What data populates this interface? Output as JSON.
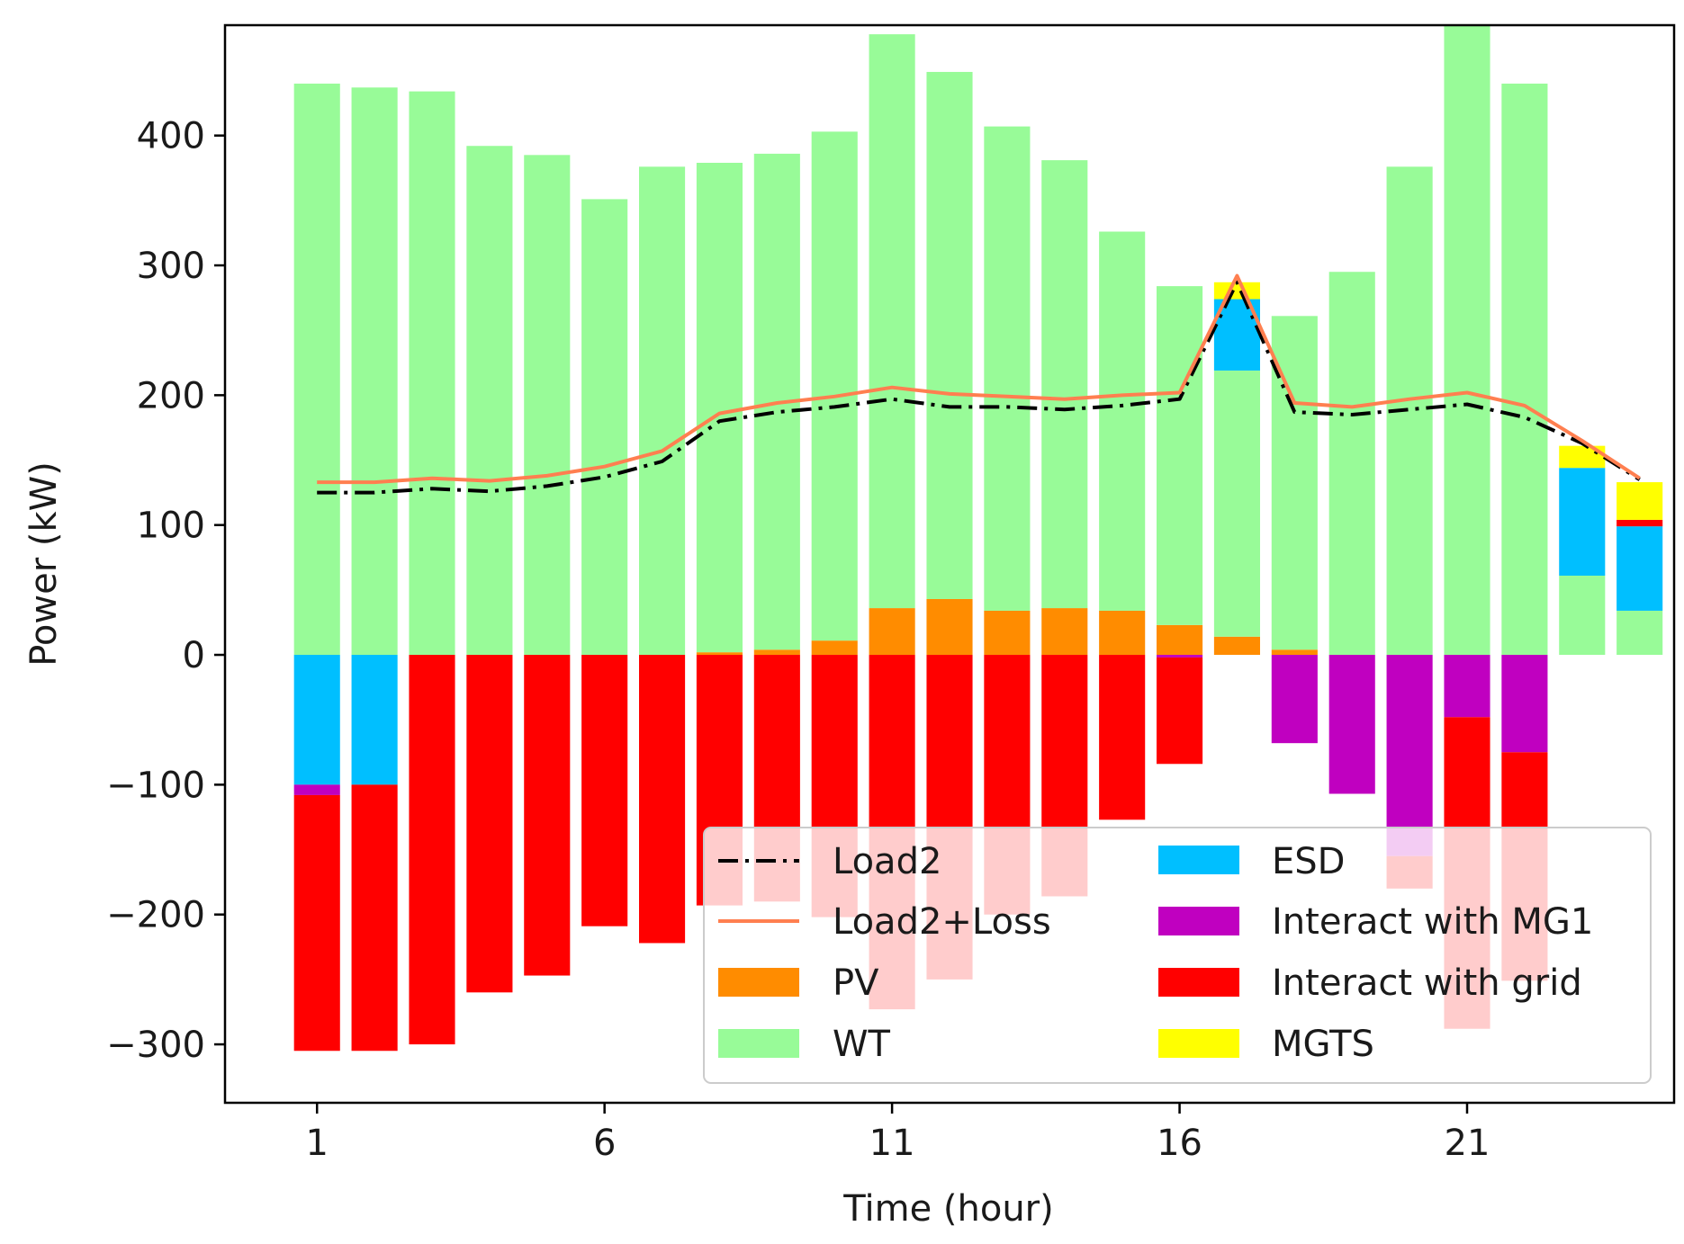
{
  "chart_data": {
    "type": "bar",
    "title": "",
    "xlabel": "Time (hour)",
    "ylabel": "Power (kW)",
    "ylim": [
      -345,
      485
    ],
    "xlim": [
      -0.6,
      24.6
    ],
    "hours": [
      1,
      2,
      3,
      4,
      5,
      6,
      7,
      8,
      9,
      10,
      11,
      12,
      13,
      14,
      15,
      16,
      17,
      18,
      19,
      20,
      21,
      22,
      23,
      24
    ],
    "x_ticks": [
      1,
      6,
      11,
      16,
      21
    ],
    "x_tick_labels": [
      "1",
      "6",
      "11",
      "16",
      "21"
    ],
    "y_ticks": [
      -300,
      -200,
      -100,
      0,
      100,
      200,
      300,
      400
    ],
    "y_tick_labels": [
      "−300",
      "−200",
      "−100",
      "0",
      "100",
      "200",
      "300",
      "400"
    ],
    "legend": [
      "Load2",
      "Load2+Loss",
      "PV",
      "WT",
      "ESD",
      "Interact with MG1",
      "Interact with grid",
      "MGTS"
    ],
    "legend_position": "lower-right",
    "colors": {
      "PV": "#ff8c00",
      "WT": "#98fb98",
      "ESD": "#00bfff",
      "Interact with MG1": "#c000c0",
      "Interact with grid": "#ff0000",
      "MGTS": "#ffff00",
      "Load2": "#000000",
      "Load2+Loss": "#ff7f50"
    },
    "series": [
      {
        "name": "PV",
        "values": [
          0,
          0,
          0,
          0,
          0,
          0,
          0,
          2,
          4,
          11,
          36,
          43,
          34,
          36,
          34,
          23,
          14,
          4,
          0,
          0,
          0,
          0,
          0,
          0
        ]
      },
      {
        "name": "WT",
        "values": [
          440,
          437,
          434,
          392,
          385,
          351,
          376,
          377,
          382,
          392,
          442,
          406,
          373,
          345,
          292,
          261,
          205,
          257,
          295,
          376,
          485,
          440,
          61,
          34
        ]
      },
      {
        "name": "ESD",
        "values": [
          -100,
          -100,
          0,
          0,
          0,
          0,
          0,
          0,
          0,
          0,
          0,
          0,
          0,
          0,
          0,
          0,
          55,
          0,
          0,
          0,
          0,
          0,
          83,
          65
        ]
      },
      {
        "name": "Interact with MG1",
        "values": [
          -8,
          0,
          0,
          0,
          0,
          0,
          0,
          0,
          0,
          0,
          0,
          0,
          0,
          0,
          0,
          -2,
          0,
          -68,
          -107,
          -155,
          -48,
          -75,
          0,
          0
        ]
      },
      {
        "name": "Interact with grid",
        "values": [
          -197,
          -205,
          -300,
          -260,
          -247,
          -209,
          -222,
          -193,
          -190,
          -202,
          -273,
          -250,
          -200,
          -186,
          -127,
          -82,
          0,
          0,
          0,
          -25,
          -240,
          -176,
          0,
          5
        ]
      },
      {
        "name": "MGTS",
        "values": [
          0,
          0,
          0,
          0,
          0,
          0,
          0,
          0,
          0,
          0,
          0,
          0,
          0,
          0,
          0,
          0,
          13,
          0,
          0,
          0,
          0,
          0,
          17,
          29
        ]
      },
      {
        "name": "Load2",
        "type": "line",
        "values": [
          125,
          125,
          128,
          126,
          130,
          137,
          149,
          180,
          187,
          191,
          197,
          191,
          191,
          189,
          192,
          197,
          287,
          187,
          185,
          189,
          193,
          183,
          163,
          135
        ]
      },
      {
        "name": "Load2+Loss",
        "type": "line",
        "values": [
          133,
          133,
          136,
          134,
          138,
          145,
          157,
          186,
          194,
          199,
          206,
          201,
          199,
          197,
          200,
          202,
          292,
          194,
          191,
          197,
          202,
          192,
          165,
          136
        ]
      }
    ]
  }
}
